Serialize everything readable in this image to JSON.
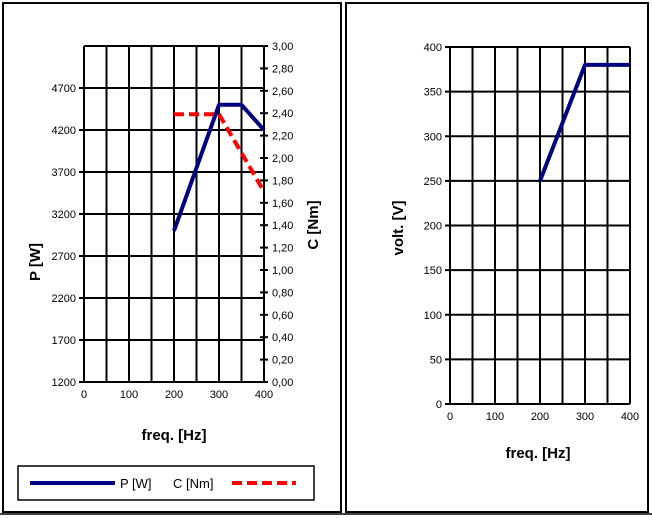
{
  "chart_data": [
    {
      "type": "line",
      "x_label": "freq. [Hz]",
      "y_label": "P [W]",
      "y2_label": "C [Nm]",
      "xlim": [
        0,
        400
      ],
      "ylim": [
        1200,
        5200
      ],
      "y2lim": [
        0.0,
        3.0
      ],
      "x_ticks": [
        "0",
        "100",
        "200",
        "300",
        "400"
      ],
      "y_ticks": [
        "1200",
        "1700",
        "2200",
        "2700",
        "3200",
        "3700",
        "4200",
        "4700"
      ],
      "y2_ticks": [
        "0,00",
        "0,20",
        "0,40",
        "0,60",
        "0,80",
        "1,00",
        "1,20",
        "1,40",
        "1,60",
        "1,80",
        "2,00",
        "2,20",
        "2,40",
        "2,60",
        "2,80",
        "3,00"
      ],
      "grid": true,
      "legend_position": "bottom",
      "series": [
        {
          "name": "P [W]",
          "axis": "left",
          "style": "solid",
          "color": "#000080",
          "x": [
            200,
            300,
            350,
            400
          ],
          "y": [
            3000,
            4500,
            4500,
            4200
          ]
        },
        {
          "name": "C [Nm]",
          "axis": "right",
          "style": "dashed",
          "color": "#ff0000",
          "x": [
            200,
            300,
            400
          ],
          "y": [
            2.39,
            2.39,
            1.7
          ]
        }
      ]
    },
    {
      "type": "line",
      "x_label": "freq. [Hz]",
      "y_label": "volt. [V]",
      "xlim": [
        0,
        400
      ],
      "ylim": [
        0,
        400
      ],
      "x_ticks": [
        "0",
        "100",
        "200",
        "300",
        "400"
      ],
      "y_ticks": [
        "0",
        "50",
        "100",
        "150",
        "200",
        "250",
        "300",
        "350",
        "400"
      ],
      "grid": true,
      "series": [
        {
          "style": "solid",
          "color": "#000080",
          "x": [
            200,
            300,
            400
          ],
          "y": [
            250,
            380,
            380
          ]
        }
      ]
    }
  ]
}
